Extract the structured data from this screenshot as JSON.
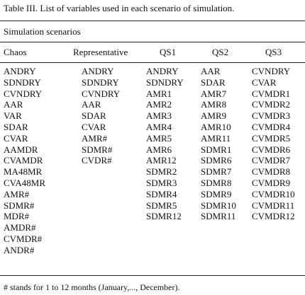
{
  "caption": "Table III. List of variables used in each scenario of simulation.",
  "group_header": "Simulation scenarios",
  "columns": [
    {
      "header": "Chaos",
      "items": [
        "ANDRY",
        "SDNDRY",
        "CVNDRY",
        "AAR",
        "VAR",
        "SDAR",
        "CVAR",
        "AAMDR",
        "CVAMDR",
        "MA48MR",
        "CVA48MR",
        "AMR#",
        "SDMR#",
        "MDR#",
        "AMDR#",
        "CVMDR#",
        "ANDR#"
      ]
    },
    {
      "header": "Representative",
      "items": [
        "ANDRY",
        "SDNDRY",
        "CVNDRY",
        "AAR",
        "SDAR",
        "CVAR",
        "AMR#",
        "SDMR#",
        "CVDR#"
      ]
    },
    {
      "header": "QS1",
      "items": [
        "ANDRY",
        "SDNDRY",
        "AMR1",
        "AMR2",
        "AMR3",
        "AMR4",
        "AMR5",
        "AMR6",
        "AMR12",
        "SDMR2",
        "SDMR3",
        "SDMR4",
        "SDMR5",
        "SDMR12"
      ]
    },
    {
      "header": "QS2",
      "items": [
        "AAR",
        "SDAR",
        "AMR7",
        "AMR8",
        "AMR9",
        "AMR10",
        "AMR11",
        "SDMR1",
        "SDMR6",
        "SDMR7",
        "SDMR8",
        "SDMR9",
        "SDMR10",
        "SDMR11"
      ]
    },
    {
      "header": "QS3",
      "items": [
        "CVNDRY",
        "CVAR",
        "CVMDR1",
        "CVMDR2",
        "CVMDR3",
        "CVMDR4",
        "CVMDR5",
        "CVMDR6",
        "CVMDR7",
        "CVMDR8",
        "CVMDR9",
        "CVMDR10",
        "CVMDR11",
        "CVMDR12"
      ]
    }
  ],
  "footnote": "# stands for 1 to 12 months (January,..., December)."
}
